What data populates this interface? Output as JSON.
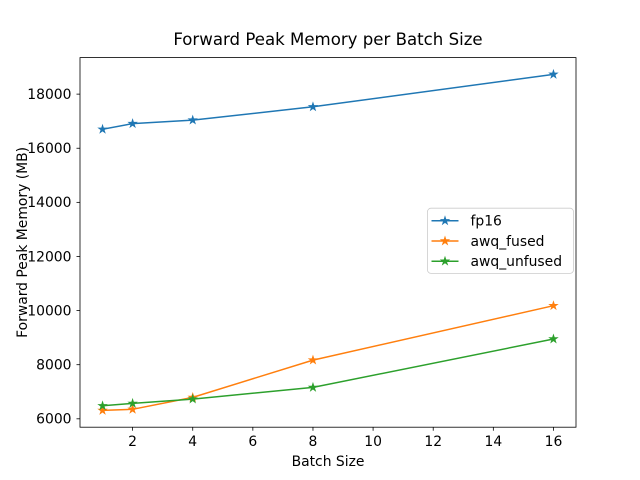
{
  "chart_data": {
    "type": "line",
    "title": "Forward Peak Memory per Batch Size",
    "xlabel": "Batch Size",
    "ylabel": "Forward Peak Memory (MB)",
    "x": [
      1,
      2,
      4,
      8,
      16
    ],
    "series": [
      {
        "name": "fp16",
        "color": "#1f77b4",
        "values": [
          16700,
          16910,
          17040,
          17530,
          18730
        ]
      },
      {
        "name": "awq_fused",
        "color": "#ff7f0e",
        "values": [
          6310,
          6350,
          6790,
          8170,
          10180
        ]
      },
      {
        "name": "awq_unfused",
        "color": "#2ca02c",
        "values": [
          6480,
          6570,
          6730,
          7160,
          8950
        ]
      }
    ],
    "marker": "star",
    "xticks": [
      2,
      4,
      6,
      8,
      10,
      12,
      14,
      16
    ],
    "yticks": [
      6000,
      8000,
      10000,
      12000,
      14000,
      16000,
      18000
    ],
    "xlim": [
      0.25,
      16.75
    ],
    "ylim": [
      5690,
      19350
    ],
    "grid": false,
    "legend": {
      "position": "center-right",
      "frame": true,
      "labels": [
        "fp16",
        "awq_fused",
        "awq_unfused"
      ]
    }
  }
}
